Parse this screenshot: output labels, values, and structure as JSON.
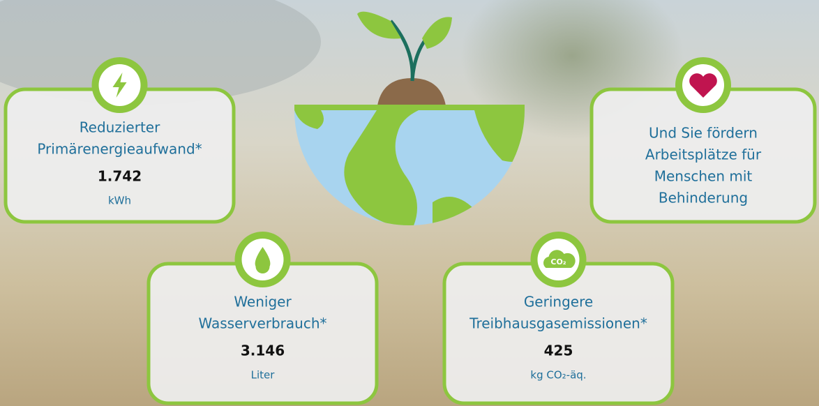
{
  "cards": [
    {
      "title": [
        "Reduzierter",
        "Primärenergieaufwand*"
      ],
      "value": "1.742",
      "unit": "kWh"
    },
    {
      "title": [
        "Und Sie fördern",
        "Arbeitsplätze für",
        "Menschen mit",
        "Behinderung"
      ]
    },
    {
      "title": [
        "Weniger",
        "Wasserverbrauch*"
      ],
      "value": "3.146",
      "unit": "Liter"
    },
    {
      "title": [
        "Geringere",
        "Treibhausgasemissionen*"
      ],
      "value": "425",
      "unit": "kg CO₂-äq.",
      "icon_text": "CO₂"
    }
  ]
}
